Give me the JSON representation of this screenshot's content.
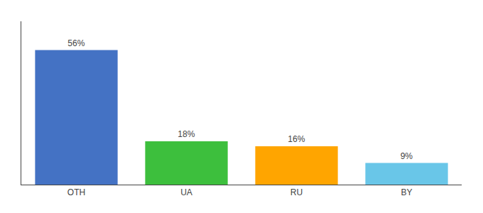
{
  "chart_data": {
    "type": "bar",
    "categories": [
      "OTH",
      "UA",
      "RU",
      "BY"
    ],
    "values": [
      56,
      18,
      16,
      9
    ],
    "value_labels": [
      "56%",
      "18%",
      "16%",
      "9%"
    ],
    "data_labels": true,
    "colors": [
      "#4472C4",
      "#3DBF3D",
      "#FFA500",
      "#69C6E8"
    ],
    "ylim": [
      0,
      68
    ],
    "tick_labels": "x",
    "grid": false
  }
}
